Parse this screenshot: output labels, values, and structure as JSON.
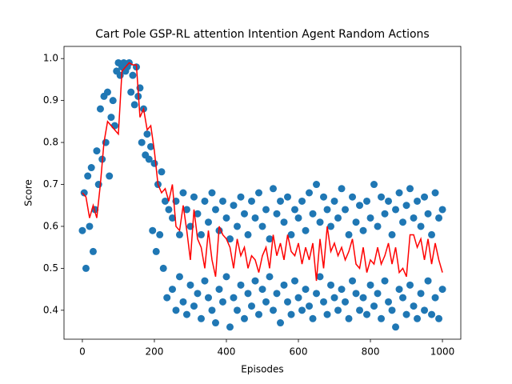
{
  "chart_data": {
    "type": "scatter",
    "title": "Cart Pole GSP-RL attention Intention Agent Random Actions",
    "x_label": "Episodes",
    "y_label": "Score",
    "xlim": [
      -51,
      1051
    ],
    "ylim": [
      0.331,
      1.029
    ],
    "xticks": [
      0,
      200,
      400,
      600,
      800,
      1000
    ],
    "yticks": [
      0.4,
      0.5,
      0.6,
      0.7,
      0.8,
      0.9,
      {
        "value": 1,
        "label": "1.0"
      }
    ],
    "points": {
      "type": "scatter",
      "color": "#1f77b4",
      "x": [
        0,
        5,
        10,
        15,
        20,
        25,
        30,
        35,
        40,
        45,
        50,
        55,
        60,
        65,
        70,
        75,
        80,
        85,
        90,
        95,
        100,
        105,
        110,
        115,
        120,
        125,
        130,
        135,
        140,
        145,
        150,
        155,
        160,
        165,
        170,
        175,
        180,
        185,
        190,
        195,
        200,
        205,
        210,
        215,
        220,
        225,
        230,
        235,
        240,
        250,
        250,
        260,
        260,
        270,
        270,
        280,
        280,
        290,
        290,
        300,
        300,
        310,
        310,
        320,
        320,
        330,
        330,
        340,
        340,
        350,
        350,
        360,
        360,
        370,
        370,
        380,
        380,
        390,
        390,
        400,
        400,
        410,
        410,
        420,
        420,
        430,
        430,
        440,
        440,
        450,
        450,
        460,
        460,
        470,
        470,
        480,
        480,
        490,
        490,
        500,
        500,
        510,
        510,
        520,
        520,
        530,
        530,
        540,
        540,
        550,
        550,
        560,
        560,
        570,
        570,
        580,
        580,
        590,
        590,
        600,
        600,
        610,
        610,
        620,
        620,
        630,
        630,
        640,
        640,
        650,
        650,
        660,
        660,
        670,
        670,
        680,
        680,
        690,
        690,
        700,
        700,
        710,
        710,
        720,
        720,
        730,
        730,
        740,
        740,
        750,
        750,
        760,
        760,
        770,
        770,
        780,
        780,
        790,
        790,
        800,
        800,
        810,
        810,
        820,
        820,
        830,
        830,
        840,
        840,
        850,
        850,
        860,
        860,
        870,
        870,
        880,
        880,
        890,
        890,
        900,
        900,
        910,
        910,
        920,
        920,
        930,
        930,
        940,
        940,
        950,
        950,
        960,
        960,
        970,
        970,
        980,
        980,
        990,
        990,
        1000,
        1000
      ],
      "values": [
        0.59,
        0.68,
        0.5,
        0.72,
        0.6,
        0.74,
        0.54,
        0.64,
        0.78,
        0.7,
        0.88,
        0.76,
        0.91,
        0.8,
        0.92,
        0.72,
        0.86,
        0.9,
        0.84,
        0.97,
        0.99,
        0.96,
        0.98,
        0.99,
        0.97,
        0.98,
        0.99,
        0.92,
        0.96,
        0.89,
        0.98,
        0.91,
        0.93,
        0.8,
        0.88,
        0.77,
        0.82,
        0.76,
        0.79,
        0.59,
        0.75,
        0.54,
        0.7,
        0.58,
        0.73,
        0.5,
        0.66,
        0.43,
        0.64,
        0.62,
        0.45,
        0.66,
        0.4,
        0.58,
        0.48,
        0.68,
        0.42,
        0.64,
        0.39,
        0.6,
        0.46,
        0.67,
        0.41,
        0.63,
        0.44,
        0.58,
        0.38,
        0.66,
        0.47,
        0.61,
        0.43,
        0.68,
        0.4,
        0.64,
        0.37,
        0.59,
        0.45,
        0.66,
        0.42,
        0.62,
        0.48,
        0.57,
        0.36,
        0.65,
        0.43,
        0.6,
        0.4,
        0.67,
        0.46,
        0.63,
        0.38,
        0.58,
        0.44,
        0.66,
        0.41,
        0.62,
        0.47,
        0.68,
        0.39,
        0.6,
        0.45,
        0.64,
        0.42,
        0.57,
        0.48,
        0.69,
        0.4,
        0.63,
        0.44,
        0.66,
        0.37,
        0.61,
        0.46,
        0.67,
        0.42,
        0.58,
        0.39,
        0.64,
        0.47,
        0.62,
        0.43,
        0.66,
        0.4,
        0.59,
        0.45,
        0.68,
        0.41,
        0.63,
        0.38,
        0.7,
        0.44,
        0.61,
        0.48,
        0.67,
        0.42,
        0.64,
        0.39,
        0.6,
        0.46,
        0.66,
        0.43,
        0.62,
        0.4,
        0.69,
        0.45,
        0.64,
        0.42,
        0.58,
        0.38,
        0.67,
        0.47,
        0.61,
        0.44,
        0.65,
        0.4,
        0.59,
        0.43,
        0.66,
        0.39,
        0.62,
        0.46,
        0.7,
        0.41,
        0.6,
        0.44,
        0.67,
        0.38,
        0.63,
        0.47,
        0.66,
        0.42,
        0.58,
        0.4,
        0.64,
        0.36,
        0.68,
        0.45,
        0.61,
        0.43,
        0.65,
        0.39,
        0.69,
        0.46,
        0.62,
        0.41,
        0.66,
        0.38,
        0.6,
        0.44,
        0.67,
        0.4,
        0.63,
        0.47,
        0.58,
        0.39,
        0.68,
        0.43,
        0.62,
        0.38,
        0.64,
        0.45
      ]
    },
    "trend": {
      "type": "line",
      "color": "#ff0000",
      "x": [
        0,
        10,
        20,
        30,
        40,
        50,
        60,
        70,
        80,
        90,
        100,
        110,
        120,
        130,
        140,
        150,
        160,
        170,
        180,
        190,
        200,
        210,
        220,
        230,
        240,
        250,
        260,
        270,
        280,
        290,
        300,
        310,
        320,
        330,
        340,
        350,
        360,
        370,
        380,
        390,
        400,
        410,
        420,
        430,
        440,
        450,
        460,
        470,
        480,
        490,
        500,
        510,
        520,
        530,
        540,
        550,
        560,
        570,
        580,
        590,
        600,
        610,
        620,
        630,
        640,
        650,
        660,
        670,
        680,
        690,
        700,
        710,
        720,
        730,
        740,
        750,
        760,
        770,
        780,
        790,
        800,
        810,
        820,
        830,
        840,
        850,
        860,
        870,
        880,
        890,
        900,
        910,
        920,
        930,
        940,
        950,
        960,
        970,
        980,
        990,
        1000
      ],
      "values": [
        0.68,
        0.67,
        0.62,
        0.65,
        0.62,
        0.7,
        0.8,
        0.85,
        0.84,
        0.83,
        0.82,
        0.97,
        0.98,
        0.99,
        0.985,
        0.985,
        0.86,
        0.88,
        0.83,
        0.84,
        0.78,
        0.7,
        0.68,
        0.69,
        0.66,
        0.7,
        0.6,
        0.59,
        0.65,
        0.59,
        0.52,
        0.64,
        0.57,
        0.55,
        0.5,
        0.59,
        0.52,
        0.48,
        0.6,
        0.58,
        0.57,
        0.55,
        0.5,
        0.57,
        0.53,
        0.55,
        0.5,
        0.53,
        0.52,
        0.49,
        0.53,
        0.55,
        0.5,
        0.58,
        0.53,
        0.56,
        0.52,
        0.58,
        0.54,
        0.53,
        0.56,
        0.51,
        0.55,
        0.52,
        0.56,
        0.47,
        0.57,
        0.5,
        0.6,
        0.54,
        0.56,
        0.53,
        0.55,
        0.52,
        0.54,
        0.57,
        0.51,
        0.5,
        0.55,
        0.49,
        0.52,
        0.51,
        0.55,
        0.51,
        0.53,
        0.56,
        0.51,
        0.55,
        0.49,
        0.5,
        0.48,
        0.58,
        0.58,
        0.55,
        0.57,
        0.52,
        0.57,
        0.51,
        0.56,
        0.52,
        0.49
      ]
    }
  }
}
